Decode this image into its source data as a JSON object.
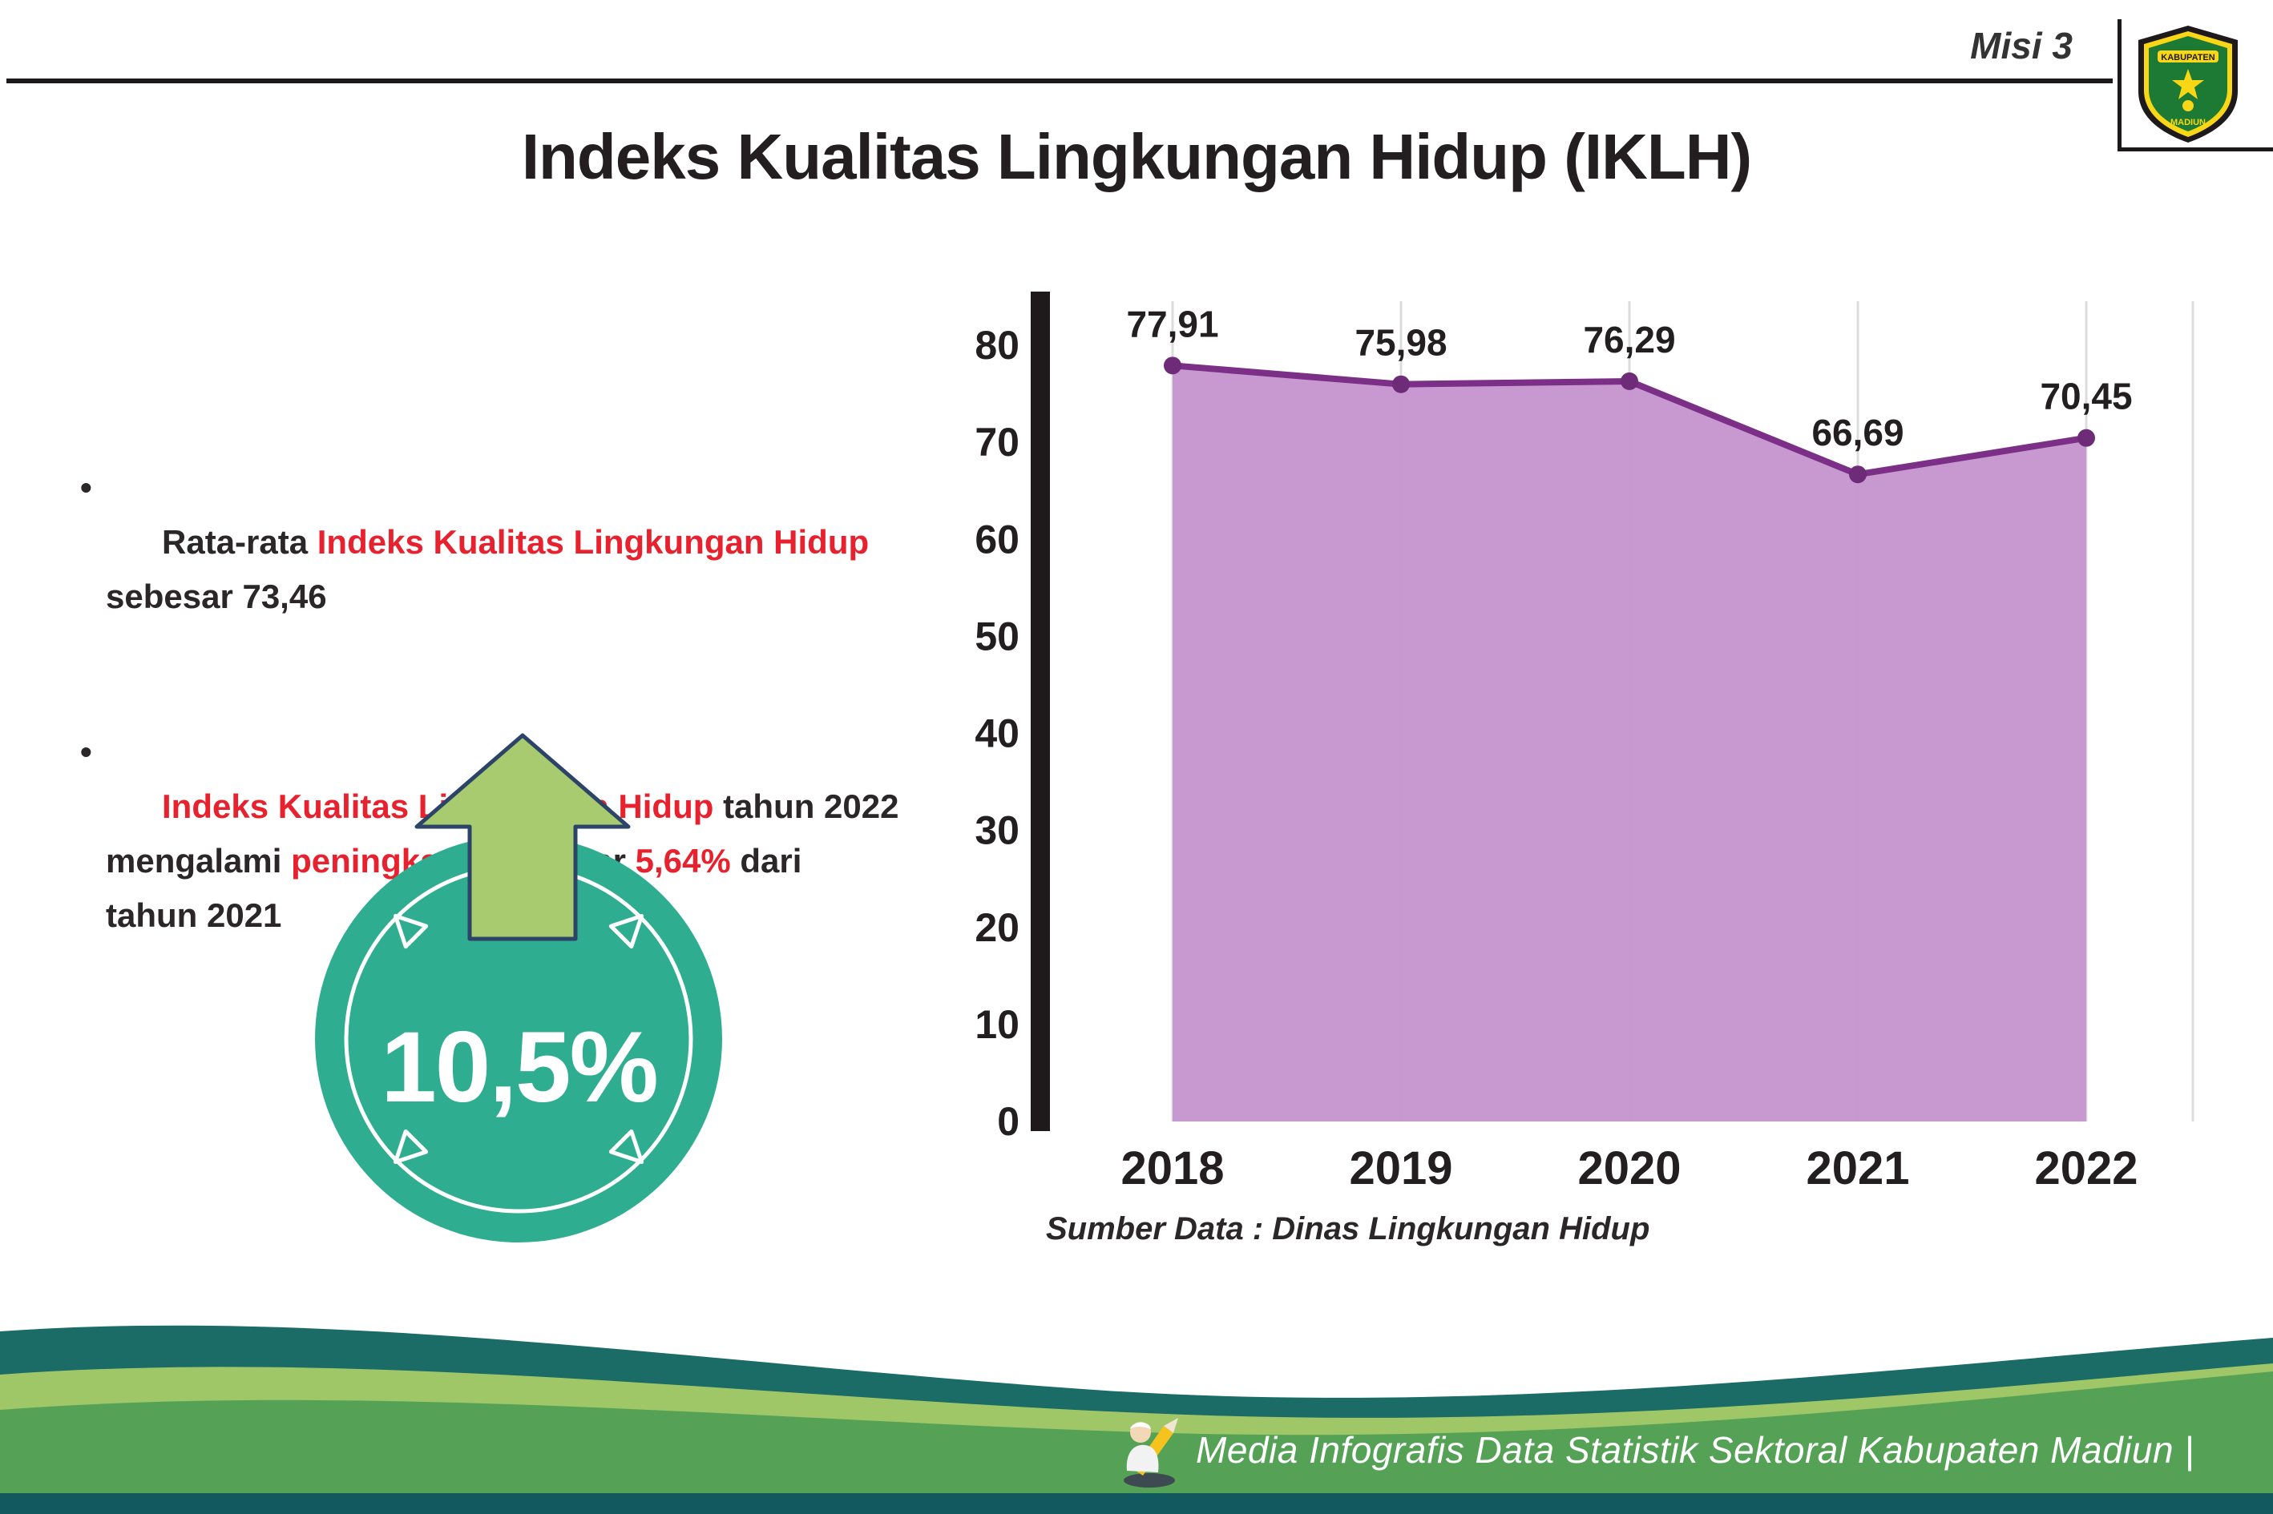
{
  "header": {
    "misi": "Misi 3",
    "title": "Indeks Kualitas Lingkungan Hidup (IKLH)",
    "logo": {
      "top_text": "KABUPATEN",
      "bottom_text": "MADIUN"
    }
  },
  "bullets": [
    {
      "segments": [
        {
          "t": "Rata-rata ",
          "c": "dark"
        },
        {
          "t": "Indeks Kualitas Lingkungan Hidup",
          "c": "red"
        },
        {
          "t": "\nsebesar 73,46",
          "c": "dark"
        }
      ]
    },
    {
      "segments": [
        {
          "t": "Indeks Kualitas Lingkungan Hidup",
          "c": "red"
        },
        {
          "t": " tahun 2022\nmengalami ",
          "c": "dark"
        },
        {
          "t": "peningkatan",
          "c": "red"
        },
        {
          "t": " sebesar ",
          "c": "dark"
        },
        {
          "t": "5,64%",
          "c": "red"
        },
        {
          "t": " dari\ntahun 2021",
          "c": "dark"
        }
      ]
    }
  ],
  "badge": {
    "value": "10,5%"
  },
  "chart_data": {
    "type": "area",
    "title": "",
    "categories": [
      "2018",
      "2019",
      "2020",
      "2021",
      "2022"
    ],
    "values": [
      77.91,
      75.98,
      76.29,
      66.69,
      70.45
    ],
    "value_labels": [
      "77,91",
      "75,98",
      "76,29",
      "66,69",
      "70,45"
    ],
    "ylim": [
      0,
      80
    ],
    "yticks": [
      0,
      10,
      20,
      30,
      40,
      50,
      60,
      70,
      80
    ],
    "grid": "vertical",
    "legend": "none",
    "colors": {
      "area": "#c493cd",
      "line": "#7b2f87",
      "marker": "#6d2b78",
      "axis": "#1e1a1b",
      "grid": "#dcdcdc",
      "label": "#231f20"
    }
  },
  "source": "Sumber Data : Dinas Lingkungan Hidup",
  "footer": {
    "caption": "Media Infografis Data Statistik Sektoral Kabupaten Madiun |"
  },
  "colors": {
    "accent_red": "#e8212e",
    "badge_teal": "#2fad90",
    "arrow_green": "#a7cb6e",
    "footer_teal": "#1b6b67",
    "footer_light_green": "#9fc768",
    "footer_green": "#55a257",
    "footer_bottom": "#11585f"
  }
}
